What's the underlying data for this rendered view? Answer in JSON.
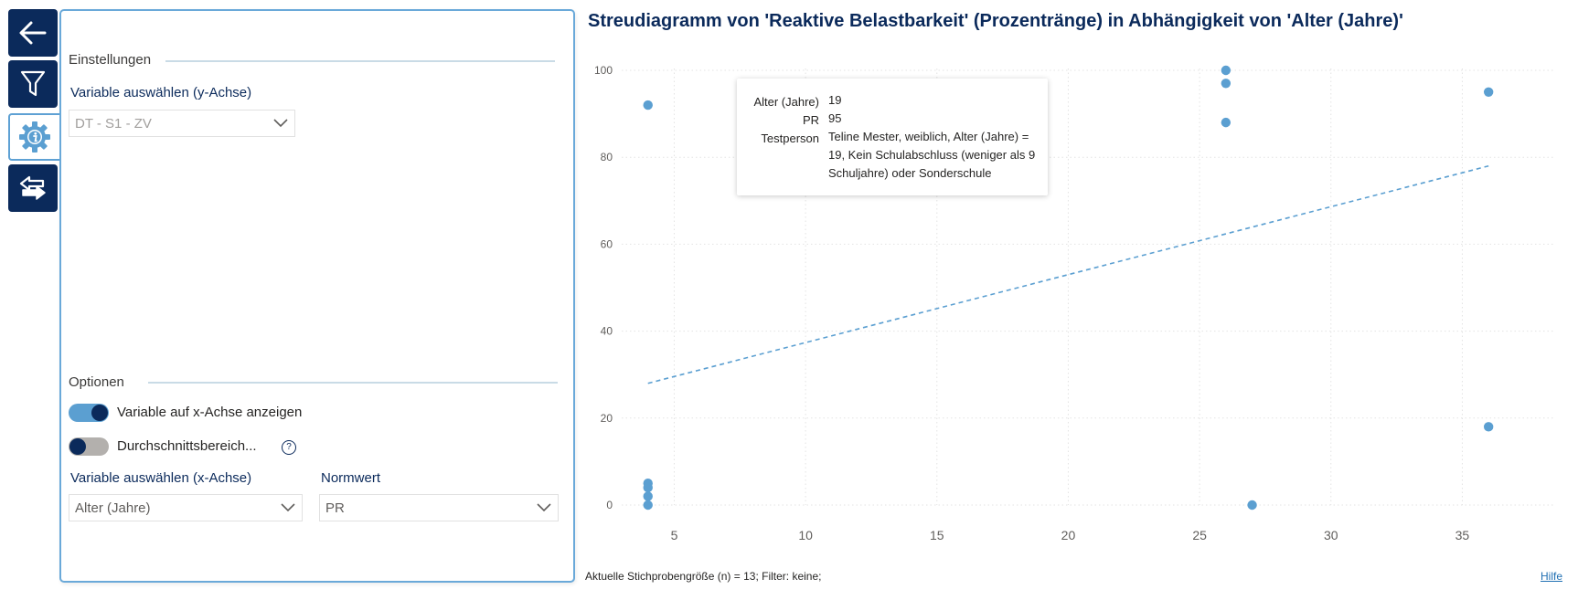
{
  "nav": {
    "items": [
      {
        "name": "back",
        "icon": "arrow-left-icon"
      },
      {
        "name": "filter",
        "icon": "filter-icon"
      },
      {
        "name": "settings",
        "icon": "gear-info-icon",
        "active": true
      },
      {
        "name": "swap",
        "icon": "swap-arrows-icon"
      }
    ]
  },
  "settings": {
    "section_title": "Einstellungen",
    "y_variable_label": "Variable auswählen (y-Achse)",
    "y_variable_value": "DT - S1 - ZV"
  },
  "options": {
    "section_title": "Optionen",
    "toggle_x_label": "Variable auf x-Achse anzeigen",
    "toggle_x_on": true,
    "toggle_avg_label": "Durchschnittsbereich...",
    "toggle_avg_on": false,
    "help_icon_glyph": "?",
    "x_variable_label": "Variable auswählen (x-Achse)",
    "x_variable_value": "Alter (Jahre)",
    "norm_label": "Normwert",
    "norm_value": "PR"
  },
  "chart_title": "Streudiagramm von 'Reaktive Belastbarkeit' (Prozentränge) in Abhängigkeit von 'Alter (Jahre)'",
  "chart_data": {
    "type": "scatter",
    "xlabel": "",
    "ylabel": "",
    "xlim": [
      3,
      38.5
    ],
    "ylim": [
      0,
      100
    ],
    "x_ticks": [
      5,
      10,
      15,
      20,
      25,
      30,
      35
    ],
    "y_ticks": [
      0,
      20,
      40,
      60,
      80,
      100
    ],
    "grid": true,
    "points": [
      {
        "x": 4,
        "y": 92
      },
      {
        "x": 4,
        "y": 5
      },
      {
        "x": 4,
        "y": 4
      },
      {
        "x": 4,
        "y": 2
      },
      {
        "x": 4,
        "y": 0
      },
      {
        "x": 19,
        "y": 95
      },
      {
        "x": 26,
        "y": 100
      },
      {
        "x": 26,
        "y": 97
      },
      {
        "x": 26,
        "y": 88
      },
      {
        "x": 27,
        "y": 0
      },
      {
        "x": 36,
        "y": 95
      },
      {
        "x": 36,
        "y": 18
      }
    ],
    "trendline": {
      "x": [
        4,
        36
      ],
      "y": [
        28,
        78
      ]
    },
    "point_color": "#5b9fd1",
    "trend_color": "#5b9fd1"
  },
  "tooltip": {
    "rows": [
      {
        "key": "Alter (Jahre)",
        "value": "19"
      },
      {
        "key": "PR",
        "value": "95"
      },
      {
        "key": "Testperson",
        "value": "Teline Mester, weiblich, Alter (Jahre) = 19, Kein Schulabschluss (weniger als 9 Schuljahre) oder Sonderschule"
      }
    ]
  },
  "footer": {
    "sample_note": "Aktuelle Stichprobengröße (n) = 13; Filter: keine;",
    "help_link": "Hilfe"
  },
  "colors": {
    "navy": "#0b2a5b",
    "accent": "#5b9fd1",
    "panel_border": "#6aa9d9"
  }
}
